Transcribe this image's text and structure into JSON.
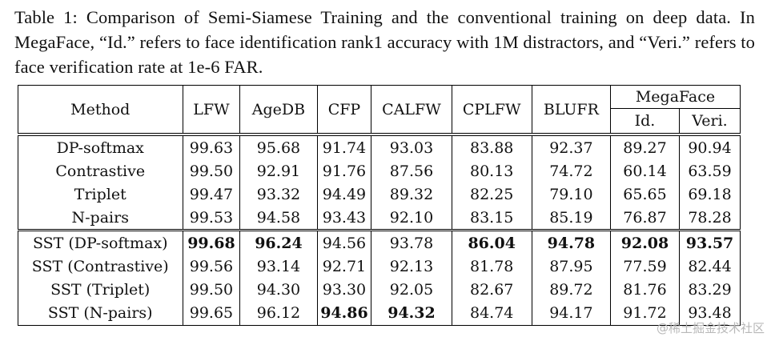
{
  "caption": "Table 1: Comparison of Semi-Siamese Training and the conventional training on deep data. In MegaFace, “Id.” refers to face identification rank1 accuracy with 1M distractors, and “Veri.” refers to face verification rate at 1e-6 FAR.",
  "table": {
    "headers": {
      "method": "Method",
      "lfw": "LFW",
      "agedb": "AgeDB",
      "cfp": "CFP",
      "calfw": "CALFW",
      "cplfw": "CPLFW",
      "blufr": "BLUFR",
      "megaface": "MegaFace",
      "id": "Id.",
      "veri": "Veri."
    },
    "rows": [
      {
        "method": "DP-softmax",
        "lfw": "99.63",
        "agedb": "95.68",
        "cfp": "91.74",
        "calfw": "93.03",
        "cplfw": "83.88",
        "blufr": "92.37",
        "id": "89.27",
        "veri": "90.94"
      },
      {
        "method": "Contrastive",
        "lfw": "99.50",
        "agedb": "92.91",
        "cfp": "91.76",
        "calfw": "87.56",
        "cplfw": "80.13",
        "blufr": "74.72",
        "id": "60.14",
        "veri": "63.59"
      },
      {
        "method": "Triplet",
        "lfw": "99.47",
        "agedb": "93.32",
        "cfp": "94.49",
        "calfw": "89.32",
        "cplfw": "82.25",
        "blufr": "79.10",
        "id": "65.65",
        "veri": "69.18"
      },
      {
        "method": "N-pairs",
        "lfw": "99.53",
        "agedb": "94.58",
        "cfp": "93.43",
        "calfw": "92.10",
        "cplfw": "83.15",
        "blufr": "85.19",
        "id": "76.87",
        "veri": "78.28"
      },
      {
        "method": "SST (DP-softmax)",
        "lfw": "99.68",
        "agedb": "96.24",
        "cfp": "94.56",
        "calfw": "93.78",
        "cplfw": "86.04",
        "blufr": "94.78",
        "id": "92.08",
        "veri": "93.57"
      },
      {
        "method": "SST (Contrastive)",
        "lfw": "99.56",
        "agedb": "93.14",
        "cfp": "92.71",
        "calfw": "92.13",
        "cplfw": "81.78",
        "blufr": "87.95",
        "id": "77.59",
        "veri": "82.44"
      },
      {
        "method": "SST (Triplet)",
        "lfw": "99.50",
        "agedb": "94.30",
        "cfp": "93.30",
        "calfw": "92.05",
        "cplfw": "82.67",
        "blufr": "89.72",
        "id": "81.76",
        "veri": "83.29"
      },
      {
        "method": "SST (N-pairs)",
        "lfw": "99.65",
        "agedb": "96.12",
        "cfp": "94.86",
        "calfw": "94.32",
        "cplfw": "84.74",
        "blufr": "94.17",
        "id": "91.72",
        "veri": "93.48"
      }
    ]
  },
  "watermark": "@稀土掘金技术社区"
}
